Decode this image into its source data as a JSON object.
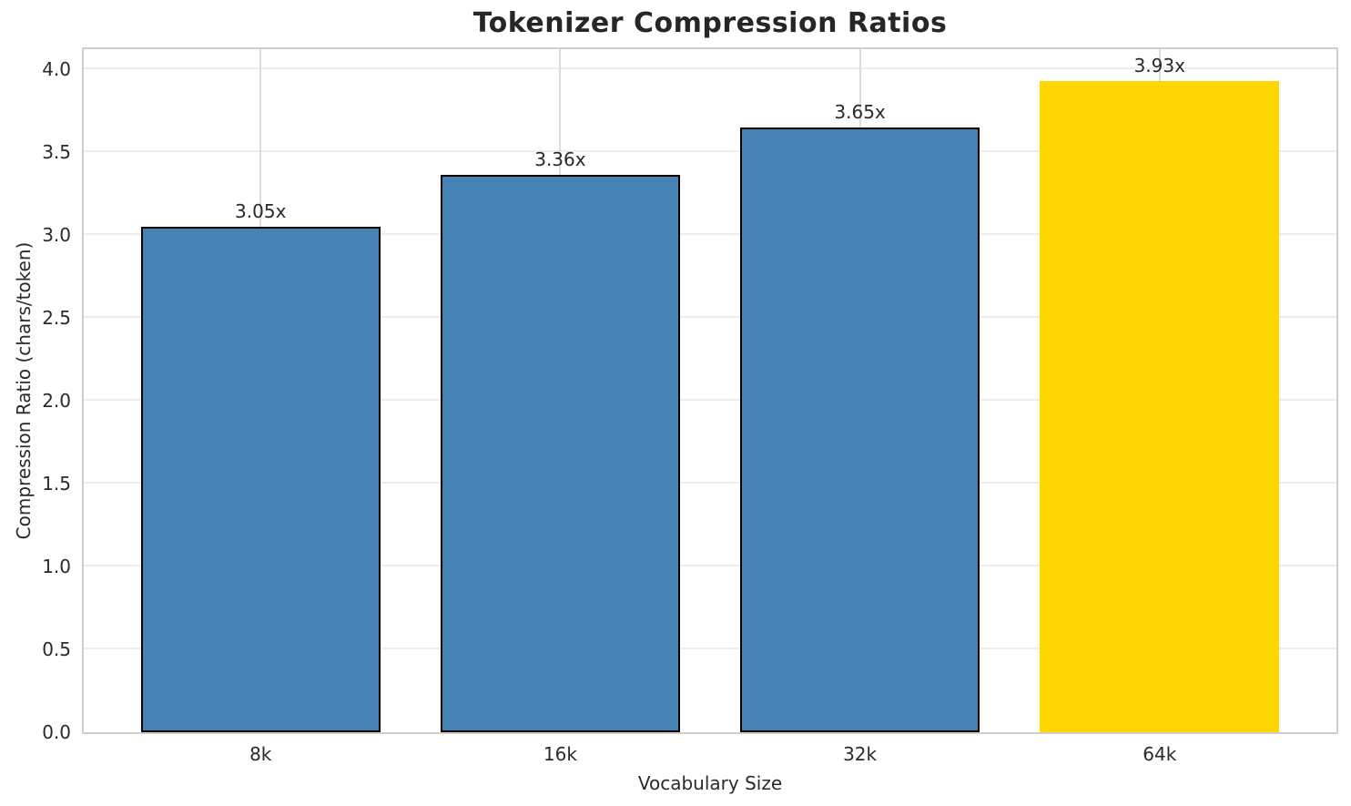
{
  "chart_data": {
    "type": "bar",
    "title": "Tokenizer Compression Ratios",
    "xlabel": "Vocabulary Size",
    "ylabel": "Compression Ratio (chars/token)",
    "categories": [
      "8k",
      "16k",
      "32k",
      "64k"
    ],
    "values": [
      3.05,
      3.36,
      3.65,
      3.93
    ],
    "bar_labels": [
      "3.05x",
      "3.36x",
      "3.65x",
      "3.93x"
    ],
    "bar_colors": [
      "#4682b4",
      "#4682b4",
      "#4682b4",
      "#ffd700"
    ],
    "bar_edge_colors": [
      "#000000",
      "#000000",
      "#000000",
      "none"
    ],
    "bar_edge_width": 2,
    "ytick_labels": [
      "0.0",
      "0.5",
      "1.0",
      "1.5",
      "2.0",
      "2.5",
      "3.0",
      "3.5",
      "4.0"
    ],
    "yticks": [
      0.0,
      0.5,
      1.0,
      1.5,
      2.0,
      2.5,
      3.0,
      3.5,
      4.0
    ],
    "ylim": [
      0,
      4.12
    ],
    "xlim": [
      -0.59,
      3.59
    ],
    "bar_width": 0.8,
    "grid": true,
    "legend_position": "none",
    "base_color": "#4682b4",
    "highlight_color": "#ffd700",
    "grid_color": "#ededed",
    "spine_color": "#cfcfcf",
    "title_color": "#262626",
    "text_color": "#2a2a2a"
  }
}
